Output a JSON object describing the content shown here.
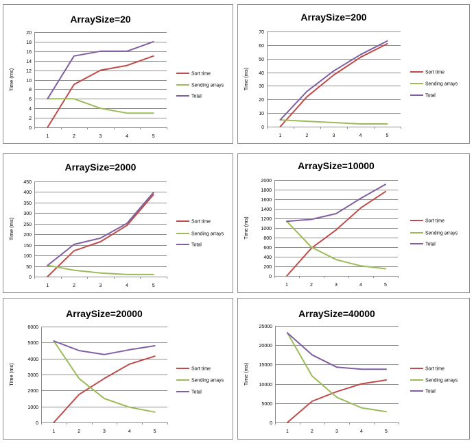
{
  "colors": {
    "sort_time": "#be4b48",
    "sending_arrays": "#9bbb59",
    "total": "#7f5fa1"
  },
  "chart_data": [
    {
      "type": "line",
      "title": "ArraySize=20",
      "ylabel": "Time (ms)",
      "xlabel": "",
      "categories": [
        "1",
        "2",
        "3",
        "4",
        "5"
      ],
      "yticks": [
        "0",
        "2",
        "4",
        "6",
        "8",
        "10",
        "12",
        "14",
        "16",
        "18",
        "20"
      ],
      "ylim": [
        0,
        20
      ],
      "grid": true,
      "legend_position": "right",
      "series": [
        {
          "name": "Sort time",
          "color": "#be4b48",
          "values": [
            0,
            9,
            12,
            13,
            15
          ]
        },
        {
          "name": "Sending arrays",
          "color": "#9bbb59",
          "values": [
            6,
            6,
            4,
            3,
            3
          ]
        },
        {
          "name": "Total",
          "color": "#7f5fa1",
          "values": [
            6,
            15,
            16,
            16,
            18
          ]
        }
      ]
    },
    {
      "type": "line",
      "title": "ArraySize=200",
      "ylabel": "Time (ms)",
      "xlabel": "",
      "categories": [
        "1",
        "2",
        "3",
        "4",
        "5"
      ],
      "yticks": [
        "0",
        "10",
        "20",
        "30",
        "40",
        "50",
        "60",
        "70"
      ],
      "ylim": [
        0,
        70
      ],
      "grid": true,
      "legend_position": "right",
      "series": [
        {
          "name": "Sort time",
          "color": "#be4b48",
          "values": [
            0,
            22,
            38,
            51,
            61
          ]
        },
        {
          "name": "Sending arrays",
          "color": "#9bbb59",
          "values": [
            5,
            4,
            3,
            2,
            2
          ]
        },
        {
          "name": "Total",
          "color": "#7f5fa1",
          "values": [
            5,
            26,
            41,
            53,
            63
          ]
        }
      ]
    },
    {
      "type": "line",
      "title": "ArraySize=2000",
      "ylabel": "Time (ms)",
      "xlabel": "",
      "categories": [
        "1",
        "2",
        "3",
        "4",
        "5"
      ],
      "yticks": [
        "0",
        "50",
        "100",
        "150",
        "200",
        "250",
        "300",
        "350",
        "400",
        "450"
      ],
      "ylim": [
        0,
        450
      ],
      "grid": true,
      "legend_position": "right",
      "series": [
        {
          "name": "Sort time",
          "color": "#be4b48",
          "values": [
            0,
            122,
            165,
            242,
            388
          ]
        },
        {
          "name": "Sending arrays",
          "color": "#9bbb59",
          "values": [
            53,
            30,
            17,
            10,
            10
          ]
        },
        {
          "name": "Total",
          "color": "#7f5fa1",
          "values": [
            53,
            152,
            182,
            252,
            398
          ]
        }
      ]
    },
    {
      "type": "line",
      "title": "ArraySize=10000",
      "ylabel": "Time (ms)",
      "xlabel": "",
      "categories": [
        "1",
        "2",
        "3",
        "4",
        "5"
      ],
      "yticks": [
        "0",
        "200",
        "400",
        "600",
        "800",
        "1000",
        "1200",
        "1400",
        "1600",
        "1800",
        "2000"
      ],
      "ylim": [
        0,
        2000
      ],
      "grid": true,
      "legend_position": "right",
      "series": [
        {
          "name": "Sort time",
          "color": "#be4b48",
          "values": [
            0,
            580,
            960,
            1420,
            1760
          ]
        },
        {
          "name": "Sending arrays",
          "color": "#9bbb59",
          "values": [
            1140,
            600,
            340,
            210,
            150
          ]
        },
        {
          "name": "Total",
          "color": "#7f5fa1",
          "values": [
            1140,
            1180,
            1300,
            1620,
            1910
          ]
        }
      ]
    },
    {
      "type": "line",
      "title": "ArraySize=20000",
      "ylabel": "Time (ms)",
      "xlabel": "",
      "categories": [
        "1",
        "2",
        "3",
        "4",
        "5"
      ],
      "yticks": [
        "0",
        "1000",
        "2000",
        "3000",
        "4000",
        "5000",
        "6000"
      ],
      "ylim": [
        0,
        6000
      ],
      "grid": true,
      "legend_position": "right",
      "series": [
        {
          "name": "Sort time",
          "color": "#be4b48",
          "values": [
            0,
            1750,
            2750,
            3650,
            4150
          ]
        },
        {
          "name": "Sending arrays",
          "color": "#9bbb59",
          "values": [
            5100,
            2750,
            1500,
            950,
            650
          ]
        },
        {
          "name": "Total",
          "color": "#7f5fa1",
          "values": [
            5100,
            4500,
            4250,
            4550,
            4800
          ]
        }
      ]
    },
    {
      "type": "line",
      "title": "ArraySize=40000",
      "ylabel": "Time (ms)",
      "xlabel": "",
      "categories": [
        "1",
        "2",
        "3",
        "4",
        "5"
      ],
      "yticks": [
        "0",
        "5000",
        "10000",
        "15000",
        "20000",
        "25000"
      ],
      "ylim": [
        0,
        25000
      ],
      "grid": true,
      "legend_position": "right",
      "series": [
        {
          "name": "Sort time",
          "color": "#be4b48",
          "values": [
            0,
            5500,
            8000,
            10000,
            11000
          ]
        },
        {
          "name": "Sending arrays",
          "color": "#9bbb59",
          "values": [
            23200,
            12000,
            6500,
            3800,
            2800
          ]
        },
        {
          "name": "Total",
          "color": "#7f5fa1",
          "values": [
            23200,
            17500,
            14300,
            13800,
            13800
          ]
        }
      ]
    }
  ]
}
